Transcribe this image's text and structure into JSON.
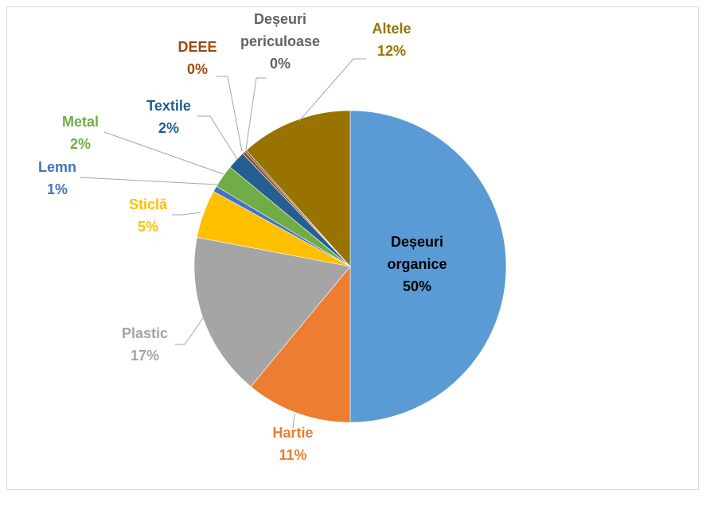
{
  "chart_data": {
    "type": "pie",
    "title": "",
    "start_angle_deg": 0,
    "direction": "clockwise",
    "slices": [
      {
        "label": "Deșeuri organice",
        "value": 50,
        "value_label": "50%",
        "color": "#5b9bd5",
        "label_color": "#000000",
        "label_style": "inside"
      },
      {
        "label": "Hartie",
        "value": 11,
        "value_label": "11%",
        "color": "#ed7d31",
        "label_color": "#ed7d31",
        "label_style": "outside"
      },
      {
        "label": "Plastic",
        "value": 17,
        "value_label": "17%",
        "color": "#a5a5a5",
        "label_color": "#a5a5a5",
        "label_style": "outside"
      },
      {
        "label": "Sticlă",
        "value": 5,
        "value_label": "5%",
        "color": "#ffc000",
        "label_color": "#ffc000",
        "label_style": "outside"
      },
      {
        "label": "Lemn",
        "value": 0.6,
        "value_label": "1%",
        "color": "#4472c4",
        "label_color": "#4472c4",
        "label_style": "outside"
      },
      {
        "label": "Metal",
        "value": 2.4,
        "value_label": "2%",
        "color": "#70ad47",
        "label_color": "#70ad47",
        "label_style": "outside"
      },
      {
        "label": "Textile",
        "value": 1.9,
        "value_label": "2%",
        "color": "#255e91",
        "label_color": "#255e91",
        "label_style": "outside"
      },
      {
        "label": "DEEE",
        "value": 0.3,
        "value_label": "0%",
        "color": "#9e480e",
        "label_color": "#9e480e",
        "label_style": "outside"
      },
      {
        "label": "Deșeuri periculoase",
        "value": 0.2,
        "value_label": "0%",
        "color": "#636363",
        "label_color": "#636363",
        "label_style": "outside"
      },
      {
        "label": "Altele",
        "value": 11.6,
        "value_label": "12%",
        "color": "#997300",
        "label_color": "#997300",
        "label_style": "outside"
      }
    ]
  }
}
